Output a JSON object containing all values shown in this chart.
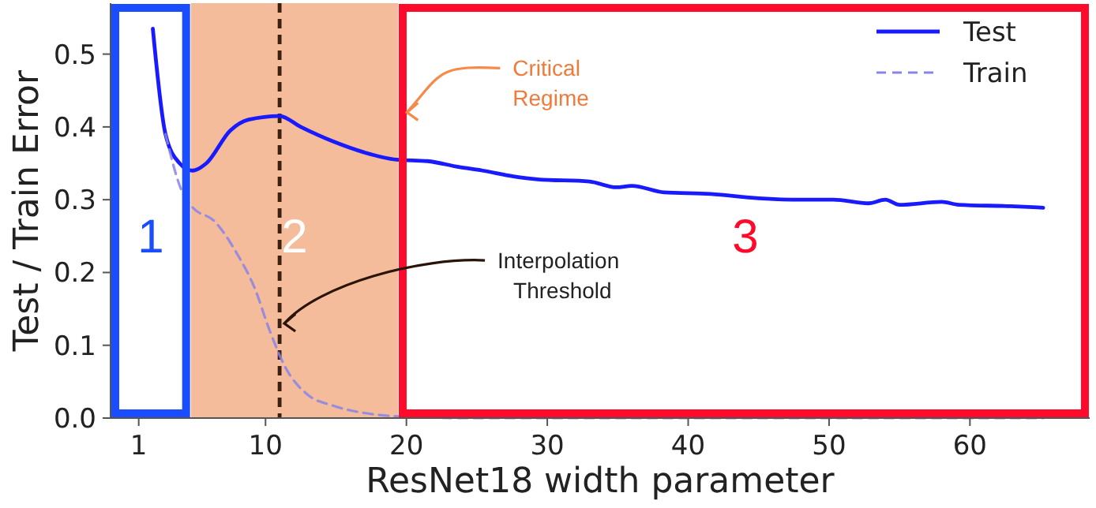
{
  "chart_data": {
    "type": "line",
    "xlabel": "ResNet18 width parameter",
    "ylabel": "Test / Train Error",
    "x": [
      2,
      2.9,
      3.9,
      4.8,
      5.8,
      7.5,
      8.8,
      11,
      12.5,
      14.8,
      17,
      19.3,
      21.5,
      23.7,
      25.4,
      27.6,
      29.3,
      33,
      34.9,
      36,
      38.3,
      41.6,
      45,
      48,
      50.3,
      52.8,
      54,
      55,
      58,
      59.2,
      62.9,
      65.2
    ],
    "series": [
      {
        "name": "Test",
        "color": "#1a1aff",
        "line_style": "solid",
        "values": [
          0.535,
          0.39,
          0.35,
          0.34,
          0.35,
          0.395,
          0.41,
          0.415,
          0.4,
          0.38,
          0.365,
          0.355,
          0.353,
          0.345,
          0.34,
          0.332,
          0.328,
          0.325,
          0.317,
          0.319,
          0.31,
          0.308,
          0.302,
          0.3,
          0.3,
          0.295,
          0.3,
          0.293,
          0.297,
          0.293,
          0.291,
          0.289
        ]
      },
      {
        "name": "Train",
        "color": "#8a84e8",
        "line_style": "dashed",
        "x": [
          2.9,
          4.1,
          4.8,
          6.4,
          8,
          9.2,
          10.3,
          11.4,
          13,
          14.8,
          17,
          19.8,
          25,
          35,
          45,
          55,
          65.2
        ],
        "values": [
          0.39,
          0.31,
          0.29,
          0.27,
          0.225,
          0.18,
          0.12,
          0.07,
          0.032,
          0.017,
          0.007,
          0.002,
          0,
          0,
          0,
          0,
          0
        ]
      }
    ],
    "xlim": [
      -1,
      68.5
    ],
    "ylim": [
      0,
      0.57
    ],
    "xticks": [
      1,
      10,
      20,
      30,
      40,
      50,
      60
    ],
    "yticks": [
      {
        "value": 0,
        "label": "0.0"
      },
      0.1,
      0.2,
      0.3,
      0.4,
      0.5
    ],
    "bands": [
      {
        "axis": "x",
        "from": 4.7,
        "to": 19.4,
        "label": "2",
        "color": "#f4bc9a"
      }
    ],
    "ref_lines": [
      {
        "axis": "x",
        "value": 11,
        "color": "#3a2010",
        "line_style": "dashed"
      }
    ],
    "annotations": [
      {
        "text": "Critical\nRegime",
        "x": 19.7,
        "y": 0.42
      },
      {
        "text": "Interpolation\nThreshold",
        "x": 11,
        "y": 0.13
      },
      "1",
      "3"
    ],
    "legend": "top right",
    "grid": false
  }
}
